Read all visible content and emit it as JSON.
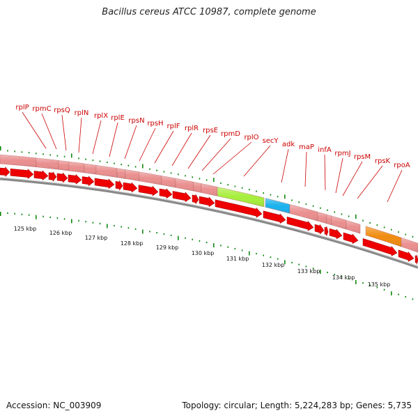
{
  "title": "Bacillus cereus ATCC 10987, complete genome",
  "footer": {
    "accession": "Accession: NC_003909",
    "summary": "Topology: circular; Length: 5,224,283 bp; Genes: 5,735"
  },
  "colors": {
    "gene_arrow": "#ee0000",
    "feature_default": "#ea8f8f",
    "secY": "#a6ee3c",
    "adk": "#1ab2ee",
    "rpoA": "#f08c10",
    "tick_minor": "#118811",
    "backbone": "#888888",
    "label": "#cc0000"
  },
  "gene_labels": [
    "rplP",
    "rpmC",
    "rpsQ",
    "rplN",
    "rplX",
    "rplE",
    "rpsN",
    "rpsH",
    "rplF",
    "rplR",
    "rpsE",
    "rpmD",
    "rplO",
    "secY",
    "adk",
    "maP",
    "infA",
    "rpmJ",
    "rpsM",
    "rpsK",
    "rpoA"
  ],
  "kbp_labels": [
    "125 kbp",
    "126 kbp",
    "127 kbp",
    "128 kbp",
    "129 kbp",
    "130 kbp",
    "131 kbp",
    "132 kbp",
    "133 kbp",
    "134 kbp",
    "135 kbp"
  ],
  "genes_track": [
    {
      "start": 0,
      "end": 52
    },
    {
      "start": 52,
      "end": 84
    },
    {
      "start": 84,
      "end": 99
    },
    {
      "start": 99,
      "end": 121
    },
    {
      "start": 121,
      "end": 138
    },
    {
      "start": 138,
      "end": 168
    },
    {
      "start": 168,
      "end": 180
    },
    {
      "start": 180,
      "end": 200
    },
    {
      "start": 200,
      "end": 232
    },
    {
      "start": 232,
      "end": 252
    },
    {
      "start": 252,
      "end": 278
    },
    {
      "start": 278,
      "end": 289
    },
    {
      "start": 289,
      "end": 312
    },
    {
      "start": 312,
      "end": 379,
      "color_key": "secY"
    },
    {
      "start": 381,
      "end": 416,
      "color_key": "adk"
    },
    {
      "start": 416,
      "end": 456
    },
    {
      "start": 456,
      "end": 469
    },
    {
      "start": 469,
      "end": 476
    },
    {
      "start": 476,
      "end": 497
    },
    {
      "start": 497,
      "end": 517
    },
    {
      "start": 525,
      "end": 576,
      "color_key": "rpoA"
    },
    {
      "start": 576,
      "end": 600
    }
  ],
  "cds_track": [
    {
      "start": 0,
      "end": 14
    },
    {
      "start": 15,
      "end": 48
    },
    {
      "start": 49,
      "end": 69
    },
    {
      "start": 70,
      "end": 81
    },
    {
      "start": 82,
      "end": 97
    },
    {
      "start": 98,
      "end": 117
    },
    {
      "start": 118,
      "end": 135
    },
    {
      "start": 136,
      "end": 164
    },
    {
      "start": 166,
      "end": 176
    },
    {
      "start": 177,
      "end": 197
    },
    {
      "start": 199,
      "end": 227
    },
    {
      "start": 229,
      "end": 247
    },
    {
      "start": 248,
      "end": 274
    },
    {
      "start": 276,
      "end": 285
    },
    {
      "start": 286,
      "end": 308
    },
    {
      "start": 309,
      "end": 376
    },
    {
      "start": 378,
      "end": 410
    },
    {
      "start": 412,
      "end": 450
    },
    {
      "start": 452,
      "end": 465
    },
    {
      "start": 466,
      "end": 471
    },
    {
      "start": 473,
      "end": 491
    },
    {
      "start": 493,
      "end": 514
    },
    {
      "start": 521,
      "end": 570
    },
    {
      "start": 572,
      "end": 594
    },
    {
      "start": 596,
      "end": 600
    }
  ]
}
